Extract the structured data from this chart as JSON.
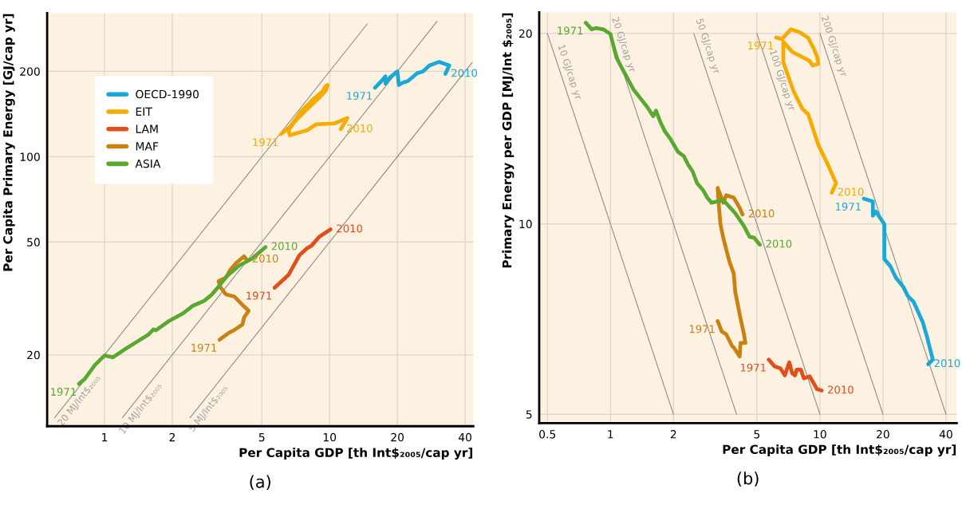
{
  "chart_data": [
    {
      "type": "line",
      "title": "(a)",
      "xlabel": "Per Capita GDP [th Int$₂₀₀₅/cap yr]",
      "ylabel": "Per Capita Primary Energy [GJ/cap yr]",
      "log": "xy",
      "grid": true,
      "legend": "top left",
      "xlim": [
        0.556,
        43.5
      ],
      "ylim": [
        11.2,
        321
      ],
      "xticks": [
        1,
        2,
        5,
        10,
        20,
        40
      ],
      "yticks": [
        20,
        50,
        100,
        200
      ],
      "series": [
        {
          "name": "OECD-1990",
          "color": "#1ba8d6",
          "x": [
            15.9,
            17,
            17.7,
            17.7,
            18.5,
            20,
            20.3,
            21,
            22.3,
            24.5,
            26,
            27.8,
            30.6,
            32.2,
            34,
            32.7
          ],
          "values": [
            175,
            185,
            192,
            181,
            190,
            200,
            179,
            182,
            185,
            197,
            200,
            210,
            216,
            213,
            210,
            196
          ]
        },
        {
          "name": "EIT",
          "color": "#f5ab00",
          "x": [
            6.08,
            6.7,
            7.5,
            8.5,
            9.3,
            9.6,
            9.8,
            9.6,
            9.1,
            8.0,
            7.0,
            6.57,
            6.65,
            7.95,
            8.7,
            10.5,
            12.0,
            11.2
          ],
          "values": [
            120,
            128,
            145,
            160,
            170,
            177,
            179,
            171,
            163,
            148,
            133,
            124,
            119,
            124,
            130,
            131,
            137,
            125
          ]
        },
        {
          "name": "LAM",
          "color": "#e04e1b",
          "x": [
            5.69,
            6.57,
            7.1,
            7.34,
            7.93,
            8.3,
            9.0,
            10.1
          ],
          "values": [
            34.5,
            38.3,
            42.8,
            44.9,
            47.5,
            48.5,
            52.2,
            55.4
          ]
        },
        {
          "name": "MAF",
          "color": "#c98211",
          "x": [
            3.24,
            3.56,
            3.75,
            4.1,
            4.17,
            4.37,
            4.1,
            3.78,
            3.46,
            3.27,
            3.21,
            3.46,
            3.62,
            3.85,
            4.17,
            4.27
          ],
          "values": [
            22.6,
            23.9,
            24.4,
            25.6,
            27.1,
            28.6,
            30.0,
            32.1,
            32.7,
            34.7,
            36.4,
            37.4,
            39.9,
            42.2,
            44.5,
            43.4
          ]
        },
        {
          "name": "ASIA",
          "color": "#5aa832",
          "x": [
            0.77,
            0.815,
            0.906,
            1.0,
            1.09,
            1.24,
            1.57,
            1.65,
            1.69,
            1.93,
            2.23,
            2.47,
            2.77,
            2.98,
            3.19,
            3.51,
            3.98,
            4.51,
            5.19
          ],
          "values": [
            15.8,
            16.4,
            18.4,
            19.9,
            19.6,
            21.0,
            23.6,
            24.6,
            24.4,
            26.3,
            28.0,
            29.8,
            31.0,
            32.5,
            34.6,
            38.0,
            41.4,
            43.6,
            48.0
          ]
        },
        {
          "color": "#8c8c8c",
          "x": [
            0.6,
            14.7
          ],
          "values": [
            12,
            294
          ]
        },
        {
          "color": "#8c8c8c",
          "x": [
            1.2,
            30
          ],
          "values": [
            12,
            300
          ]
        },
        {
          "color": "#8c8c8c",
          "x": [
            2.4,
            43
          ],
          "values": [
            12,
            215
          ]
        }
      ],
      "annotations": [
        {
          "text": "20 MJ/Int$₂₀₀₅",
          "x": 0.72,
          "y": 14.4
        },
        {
          "text": "10 MJ/Int$₂₀₀₅",
          "x": 1.35,
          "y": 13.5
        },
        {
          "text": "5 MJ/Int$₂₀₀₅",
          "x": 2.7,
          "y": 13.5
        },
        {
          "text": "1971",
          "x": 15.9,
          "y": 175
        },
        {
          "text": "2010",
          "x": 32.7,
          "y": 196
        },
        {
          "text": "1971",
          "x": 6.08,
          "y": 120
        },
        {
          "text": "2010",
          "x": 11.2,
          "y": 125
        },
        {
          "text": "1971",
          "x": 5.69,
          "y": 34.5
        },
        {
          "text": "2010",
          "x": 10.1,
          "y": 55.4
        },
        {
          "text": "1971",
          "x": 3.24,
          "y": 22.6
        },
        {
          "text": "2010",
          "x": 4.27,
          "y": 43.4
        },
        {
          "text": "1971",
          "x": 0.77,
          "y": 15.8
        },
        {
          "text": "2010",
          "x": 5.19,
          "y": 48.0
        }
      ]
    },
    {
      "type": "line",
      "title": "(b)",
      "xlabel": "Per Capita GDP [th Int$₂₀₀₅/cap yr]",
      "ylabel": "Primary Energy per GDP [MJ/Int $₂₀₀₅]",
      "log": "xy",
      "grid": true,
      "xlim": [
        0.457,
        45
      ],
      "ylim": [
        4.84,
        21.6
      ],
      "xticks": [
        0.5,
        1,
        2,
        5,
        10,
        20,
        40
      ],
      "yticks": [
        5,
        10,
        20
      ],
      "series": [
        {
          "color": "#1ba8d6",
          "x": [
            16.2,
            17.9,
            17.9,
            18.5,
            20.3,
            20.3,
            21.7,
            23.1,
            25.0,
            26.3,
            28.0,
            31.0,
            32.5,
            34.0,
            34.6,
            32.9
          ],
          "values": [
            10.96,
            10.85,
            10.3,
            10.46,
            9.99,
            8.8,
            8.57,
            8.21,
            7.95,
            7.69,
            7.53,
            6.99,
            6.62,
            6.24,
            6.1,
            6.0
          ]
        },
        {
          "color": "#f5ab00",
          "x": [
            6.18,
            6.59,
            7.25,
            7.98,
            8.78,
            9.37,
            9.68,
            9.83,
            9.24,
            8.93,
            8.12,
            7.38,
            6.69,
            6.69,
            7.49,
            8.25,
            8.8,
            9.85,
            10.8,
            11.95,
            11.4
          ],
          "values": [
            19.7,
            19.6,
            20.3,
            20.1,
            19.7,
            18.9,
            18.4,
            17.9,
            17.8,
            18.1,
            18.4,
            18.7,
            19.4,
            18.0,
            16.2,
            15.2,
            14.9,
            13.3,
            12.5,
            11.6,
            11.2
          ]
        },
        {
          "color": "#e04e1b",
          "x": [
            5.7,
            6.08,
            6.48,
            6.8,
            7.14,
            7.38,
            7.61,
            7.74,
            8.12,
            8.38,
            8.93,
            9.69,
            10.2
          ],
          "values": [
            6.1,
            5.95,
            5.91,
            5.76,
            6.04,
            5.8,
            5.76,
            5.88,
            5.88,
            5.7,
            5.74,
            5.48,
            5.45
          ]
        },
        {
          "color": "#c98211",
          "x": [
            3.25,
            3.4,
            3.57,
            3.81,
            3.9,
            4.14,
            4.18,
            4.41,
            4.34,
            4.2,
            3.94,
            3.88,
            3.7,
            3.46,
            3.35,
            3.3,
            3.25,
            3.35,
            3.46,
            3.57,
            3.88,
            4.14,
            4.27
          ],
          "values": [
            7.02,
            6.76,
            6.69,
            6.41,
            6.36,
            6.17,
            6.48,
            6.48,
            6.69,
            7.03,
            7.82,
            8.34,
            8.71,
            9.49,
            10.0,
            10.6,
            11.4,
            11.1,
            10.8,
            11.1,
            11.0,
            10.6,
            10.35
          ]
        },
        {
          "color": "#5aa832",
          "x": [
            0.762,
            0.815,
            0.852,
            0.925,
            1.0,
            1.07,
            1.17,
            1.29,
            1.5,
            1.6,
            1.65,
            1.73,
            1.82,
            1.94,
            2.1,
            2.24,
            2.35,
            2.47,
            2.59,
            2.77,
            2.9,
            3.04,
            3.46,
            3.94,
            4.34,
            4.62,
            4.85,
            5.17
          ],
          "values": [
            20.8,
            20.3,
            20.4,
            20.3,
            19.96,
            18.3,
            17.3,
            16.3,
            15.3,
            14.8,
            15.1,
            14.5,
            14.0,
            13.6,
            13.0,
            12.8,
            12.4,
            12.1,
            11.6,
            11.3,
            11.0,
            10.8,
            10.9,
            10.4,
            9.92,
            9.54,
            9.51,
            9.27
          ]
        },
        {
          "color": "#8c8c8c",
          "x": [
            0.5,
            2
          ],
          "values": [
            20,
            5
          ]
        },
        {
          "color": "#8c8c8c",
          "x": [
            1,
            4
          ],
          "values": [
            20,
            5
          ]
        },
        {
          "color": "#8c8c8c",
          "x": [
            2.5,
            10
          ],
          "values": [
            20,
            5
          ]
        },
        {
          "color": "#8c8c8c",
          "x": [
            5,
            20
          ],
          "values": [
            20,
            5
          ]
        },
        {
          "color": "#8c8c8c",
          "x": [
            10,
            40
          ],
          "values": [
            20,
            5
          ]
        }
      ],
      "annotations": [
        {
          "text": "10 GJ/cap yr",
          "x": 0.58,
          "y": 17.2
        },
        {
          "text": "20 GJ/cap yr",
          "x": 1.05,
          "y": 19.0
        },
        {
          "text": "50 GJ/cap yr",
          "x": 2.65,
          "y": 18.9
        },
        {
          "text": "100 GJ/cap yr",
          "x": 6.0,
          "y": 16.7
        },
        {
          "text": "200 GJ/cap yr",
          "x": 10.6,
          "y": 18.9
        },
        {
          "text": "1971",
          "x": 16.2,
          "y": 10.96
        },
        {
          "text": "2010",
          "x": 32.9,
          "y": 6.0
        },
        {
          "text": "1971",
          "x": 6.18,
          "y": 19.7
        },
        {
          "text": "2010",
          "x": 11.4,
          "y": 11.2
        },
        {
          "text": "1971",
          "x": 5.7,
          "y": 6.1
        },
        {
          "text": "2010",
          "x": 10.2,
          "y": 5.45
        },
        {
          "text": "1971",
          "x": 3.25,
          "y": 7.02
        },
        {
          "text": "2010",
          "x": 4.27,
          "y": 10.35
        },
        {
          "text": "1971",
          "x": 0.762,
          "y": 20.8
        },
        {
          "text": "2010",
          "x": 5.17,
          "y": 9.27
        }
      ]
    }
  ]
}
